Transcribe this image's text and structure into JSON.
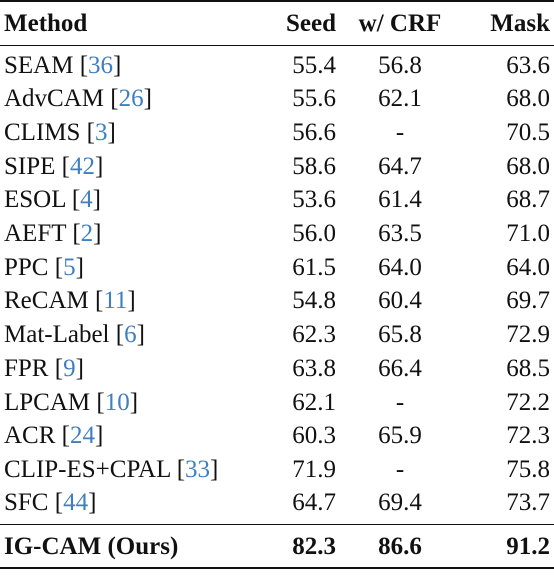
{
  "header": {
    "method": "Method",
    "seed": "Seed",
    "crf": "w/ CRF",
    "mask": "Mask"
  },
  "rows": [
    {
      "name": "SEAM",
      "ref": "36",
      "seed": "55.4",
      "crf": "56.8",
      "mask": "63.6"
    },
    {
      "name": "AdvCAM",
      "ref": "26",
      "seed": "55.6",
      "crf": "62.1",
      "mask": "68.0"
    },
    {
      "name": "CLIMS",
      "ref": "3",
      "seed": "56.6",
      "crf": "-",
      "mask": "70.5"
    },
    {
      "name": "SIPE",
      "ref": "42",
      "seed": "58.6",
      "crf": "64.7",
      "mask": "68.0"
    },
    {
      "name": "ESOL",
      "ref": "4",
      "seed": "53.6",
      "crf": "61.4",
      "mask": "68.7"
    },
    {
      "name": "AEFT",
      "ref": "2",
      "seed": "56.0",
      "crf": "63.5",
      "mask": "71.0"
    },
    {
      "name": "PPC",
      "ref": "5",
      "seed": "61.5",
      "crf": "64.0",
      "mask": "64.0"
    },
    {
      "name": "ReCAM",
      "ref": "11",
      "seed": "54.8",
      "crf": "60.4",
      "mask": "69.7"
    },
    {
      "name": "Mat-Label",
      "ref": "6",
      "seed": "62.3",
      "crf": "65.8",
      "mask": "72.9"
    },
    {
      "name": "FPR",
      "ref": "9",
      "seed": "63.8",
      "crf": "66.4",
      "mask": "68.5"
    },
    {
      "name": "LPCAM",
      "ref": "10",
      "seed": "62.1",
      "crf": "-",
      "mask": "72.2"
    },
    {
      "name": "ACR",
      "ref": "24",
      "seed": "60.3",
      "crf": "65.9",
      "mask": "72.3"
    },
    {
      "name": "CLIP-ES+CPAL",
      "ref": "33",
      "seed": "71.9",
      "crf": "-",
      "mask": "75.8"
    },
    {
      "name": "SFC",
      "ref": "44",
      "seed": "64.7",
      "crf": "69.4",
      "mask": "73.7"
    }
  ],
  "final": {
    "name": "IG-CAM (Ours)",
    "seed": "82.3",
    "crf": "86.6",
    "mask": "91.2"
  },
  "colors": {
    "citation": "#3f7fbf",
    "text": "#111111"
  }
}
